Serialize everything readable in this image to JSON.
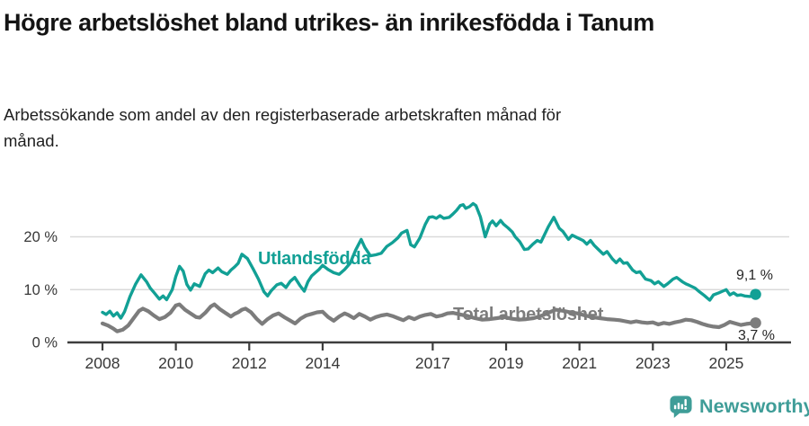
{
  "header": {
    "title": "Högre arbetslöshet bland utrikes- än inrikesfödda i Tanum",
    "subtitle": "Arbetssökande som andel av den registerbaserade arbetskraften månad för månad."
  },
  "chart_data": {
    "type": "line",
    "unit": "percent of registered labour force",
    "x_axis": {
      "ticks": [
        2008,
        2010,
        2012,
        2014,
        2017,
        2019,
        2021,
        2023,
        2025
      ],
      "range": [
        2007.1,
        2026.7
      ]
    },
    "y_axis": {
      "ticks": [
        {
          "value": 0,
          "label": "0 %"
        },
        {
          "value": 10,
          "label": "10 %"
        },
        {
          "value": 20,
          "label": "20 %"
        }
      ],
      "range": [
        0,
        27.4
      ],
      "grid": true
    },
    "colors": {
      "axis": "#3d3d3d",
      "grid": "#dadada",
      "tick_text": "#383838"
    },
    "series": [
      {
        "name": "Utlandsfödda",
        "color": "#12a095",
        "end_label": "9,1 %",
        "x": [
          2008.0,
          2008.1,
          2008.2,
          2008.3,
          2008.4,
          2008.5,
          2008.6,
          2008.75,
          2008.9,
          2009.05,
          2009.2,
          2009.3,
          2009.4,
          2009.55,
          2009.65,
          2009.75,
          2009.9,
          2010.0,
          2010.1,
          2010.2,
          2010.3,
          2010.4,
          2010.5,
          2010.65,
          2010.8,
          2010.9,
          2011.0,
          2011.15,
          2011.25,
          2011.4,
          2011.5,
          2011.6,
          2011.7,
          2011.8,
          2011.95,
          2012.1,
          2012.25,
          2012.4,
          2012.5,
          2012.6,
          2012.75,
          2012.87,
          2013.0,
          2013.12,
          2013.24,
          2013.38,
          2013.5,
          2013.6,
          2013.7,
          2013.8,
          2013.9,
          2014.0,
          2014.15,
          2014.3,
          2014.45,
          2014.6,
          2014.75,
          2014.9,
          2015.05,
          2015.15,
          2015.3,
          2015.45,
          2015.6,
          2015.75,
          2015.9,
          2016.05,
          2016.15,
          2016.3,
          2016.4,
          2016.5,
          2016.65,
          2016.8,
          2016.9,
          2017.0,
          2017.1,
          2017.2,
          2017.3,
          2017.45,
          2017.55,
          2017.65,
          2017.75,
          2017.83,
          2017.9,
          2018.0,
          2018.1,
          2018.18,
          2018.3,
          2018.43,
          2018.55,
          2018.63,
          2018.73,
          2018.85,
          2018.93,
          2019.05,
          2019.17,
          2019.25,
          2019.37,
          2019.5,
          2019.6,
          2019.73,
          2019.85,
          2019.95,
          2020.15,
          2020.3,
          2020.45,
          2020.55,
          2020.7,
          2020.8,
          2020.95,
          2021.1,
          2021.2,
          2021.3,
          2021.4,
          2021.5,
          2021.65,
          2021.75,
          2021.9,
          2022.0,
          2022.1,
          2022.2,
          2022.3,
          2022.45,
          2022.55,
          2022.65,
          2022.8,
          2022.95,
          2023.05,
          2023.15,
          2023.3,
          2023.4,
          2023.55,
          2023.65,
          2023.8,
          2023.9,
          2024.0,
          2024.15,
          2024.25,
          2024.4,
          2024.55,
          2024.65,
          2024.8,
          2024.9,
          2025.0,
          2025.1,
          2025.2,
          2025.3,
          2025.4,
          2025.5,
          2025.65,
          2025.8
        ],
        "values": [
          5.7,
          5.3,
          5.9,
          5.0,
          5.6,
          4.6,
          5.8,
          8.7,
          11.0,
          12.8,
          11.5,
          10.3,
          9.5,
          8.2,
          8.8,
          8.1,
          10.0,
          12.5,
          14.4,
          13.5,
          11.0,
          9.9,
          11.1,
          10.6,
          13.0,
          13.7,
          13.2,
          14.1,
          13.4,
          12.9,
          13.7,
          14.3,
          15.0,
          16.7,
          15.9,
          14.0,
          12.0,
          9.6,
          8.8,
          9.8,
          10.9,
          11.2,
          10.4,
          11.6,
          12.3,
          10.8,
          9.7,
          11.5,
          12.6,
          13.2,
          13.8,
          14.6,
          13.8,
          13.2,
          12.9,
          13.8,
          15.0,
          17.5,
          19.5,
          18.0,
          16.4,
          16.6,
          16.9,
          18.2,
          18.9,
          19.8,
          20.7,
          21.2,
          18.5,
          18.1,
          19.8,
          22.4,
          23.7,
          23.8,
          23.5,
          24.0,
          23.5,
          23.7,
          24.3,
          25.0,
          25.9,
          26.1,
          25.4,
          25.7,
          26.3,
          25.9,
          23.8,
          20.0,
          22.4,
          23.0,
          22.1,
          23.1,
          22.4,
          21.7,
          20.9,
          20.0,
          19.1,
          17.6,
          17.7,
          18.6,
          19.3,
          19.0,
          21.9,
          23.7,
          21.6,
          21.0,
          19.5,
          20.3,
          19.8,
          19.3,
          18.6,
          19.3,
          18.4,
          17.7,
          16.7,
          17.2,
          15.8,
          15.1,
          15.8,
          15.0,
          15.1,
          13.7,
          13.2,
          13.4,
          12.0,
          11.7,
          11.1,
          11.5,
          10.6,
          11.1,
          12.0,
          12.3,
          11.5,
          11.1,
          10.8,
          10.3,
          9.7,
          8.9,
          8.0,
          9.0,
          9.4,
          9.7,
          10.0,
          9.0,
          9.4,
          8.9,
          9.0,
          8.8,
          8.7,
          9.1
        ]
      },
      {
        "name": "Total arbetslöshet",
        "color": "#7c7c7c",
        "end_label": "3,7 %",
        "x": [
          2008.0,
          2008.15,
          2008.3,
          2008.4,
          2008.55,
          2008.7,
          2008.85,
          2009.0,
          2009.1,
          2009.25,
          2009.4,
          2009.55,
          2009.7,
          2009.85,
          2010.0,
          2010.1,
          2010.25,
          2010.4,
          2010.55,
          2010.65,
          2010.8,
          2010.95,
          2011.05,
          2011.2,
          2011.35,
          2011.5,
          2011.6,
          2011.7,
          2011.8,
          2011.9,
          2012.05,
          2012.2,
          2012.35,
          2012.5,
          2012.65,
          2012.8,
          2012.95,
          2013.1,
          2013.25,
          2013.4,
          2013.55,
          2013.7,
          2013.85,
          2014.0,
          2014.15,
          2014.3,
          2014.45,
          2014.6,
          2014.7,
          2014.85,
          2015.0,
          2015.15,
          2015.3,
          2015.45,
          2015.6,
          2015.75,
          2015.9,
          2016.05,
          2016.2,
          2016.35,
          2016.5,
          2016.65,
          2016.8,
          2016.95,
          2017.1,
          2017.25,
          2017.4,
          2017.55,
          2017.75,
          2017.95,
          2018.15,
          2018.35,
          2018.55,
          2018.75,
          2018.95,
          2019.15,
          2019.35,
          2019.55,
          2019.75,
          2019.95,
          2020.15,
          2020.35,
          2020.55,
          2020.75,
          2020.95,
          2021.15,
          2021.35,
          2021.55,
          2021.75,
          2021.95,
          2022.1,
          2022.25,
          2022.4,
          2022.55,
          2022.7,
          2022.85,
          2023.0,
          2023.15,
          2023.3,
          2023.45,
          2023.6,
          2023.75,
          2023.9,
          2024.05,
          2024.2,
          2024.35,
          2024.5,
          2024.65,
          2024.8,
          2024.95,
          2025.1,
          2025.25,
          2025.4,
          2025.55,
          2025.8
        ],
        "values": [
          3.6,
          3.2,
          2.6,
          2.1,
          2.4,
          3.2,
          4.6,
          6.0,
          6.4,
          5.9,
          5.1,
          4.4,
          4.8,
          5.6,
          7.0,
          7.2,
          6.2,
          5.5,
          4.8,
          4.7,
          5.6,
          6.8,
          7.2,
          6.3,
          5.6,
          4.9,
          5.4,
          5.7,
          6.2,
          6.4,
          5.7,
          4.5,
          3.5,
          4.4,
          5.1,
          5.5,
          4.8,
          4.2,
          3.6,
          4.5,
          5.1,
          5.4,
          5.7,
          5.8,
          4.8,
          4.1,
          4.9,
          5.5,
          5.2,
          4.6,
          5.4,
          4.9,
          4.3,
          4.8,
          5.1,
          5.3,
          5.0,
          4.6,
          4.2,
          4.8,
          4.4,
          4.9,
          5.2,
          5.4,
          4.9,
          5.1,
          5.5,
          5.6,
          5.3,
          5.0,
          4.6,
          4.3,
          4.4,
          4.6,
          4.8,
          4.5,
          4.3,
          4.4,
          4.6,
          5.0,
          5.6,
          6.2,
          6.0,
          5.7,
          5.5,
          5.1,
          4.8,
          4.6,
          4.4,
          4.3,
          4.2,
          4.0,
          3.8,
          4.0,
          3.8,
          3.7,
          3.8,
          3.4,
          3.7,
          3.5,
          3.8,
          4.0,
          4.3,
          4.2,
          3.9,
          3.5,
          3.2,
          3.0,
          2.9,
          3.3,
          3.9,
          3.6,
          3.3,
          3.5,
          3.7
        ]
      }
    ]
  },
  "footer": {
    "brand": "Newsworthy",
    "brand_color": "#3f9d98",
    "icon": "newsworthy-speech-bubble-chart-icon"
  }
}
